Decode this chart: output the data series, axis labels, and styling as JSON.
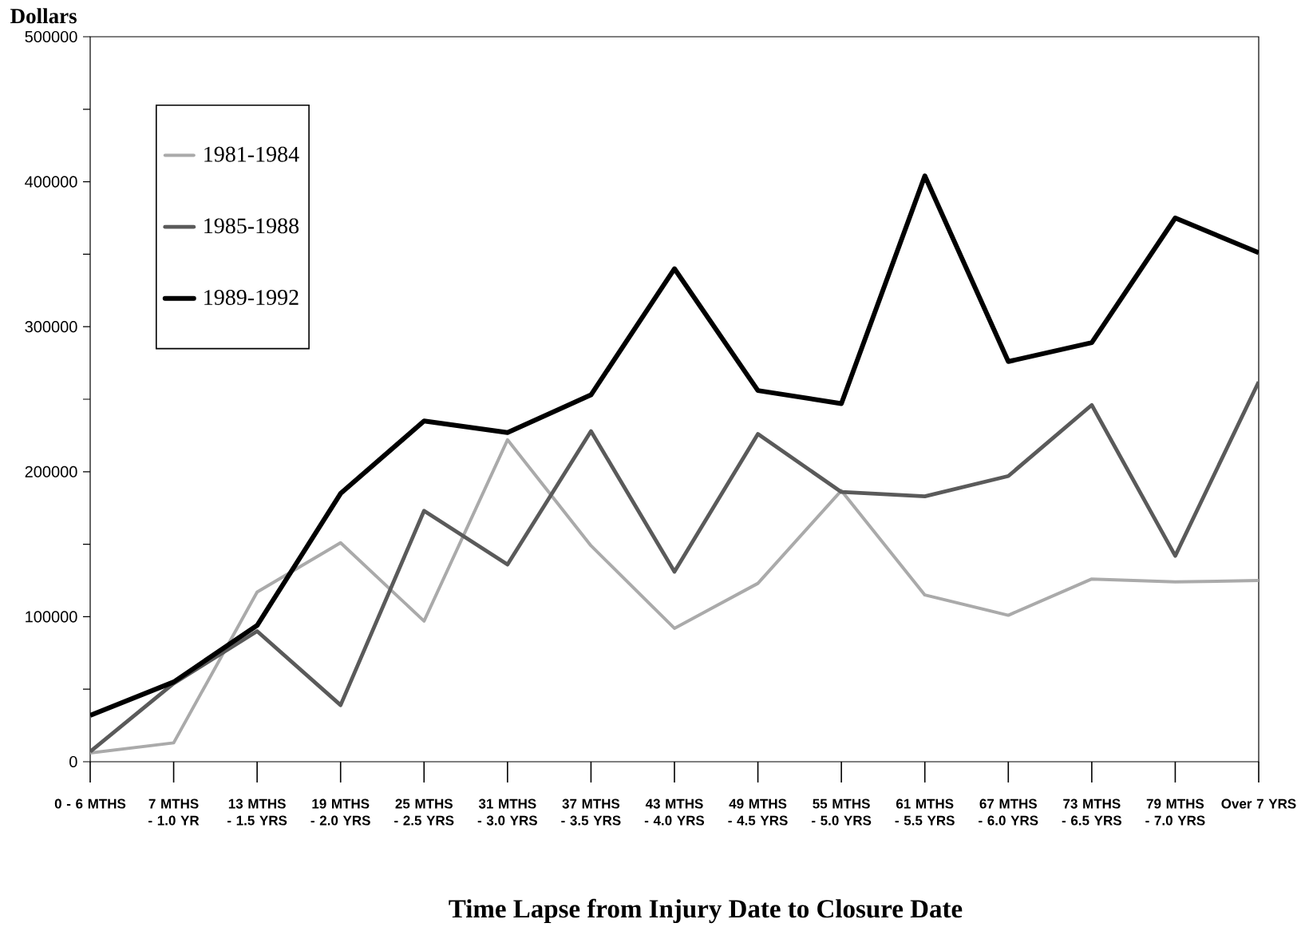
{
  "chart_data": {
    "type": "line",
    "xlabel": "Time Lapse from Injury Date to Closure Date",
    "ylabel": "Dollars",
    "categories": [
      "0 - 6 MTHS",
      "7 MTHS - 1.0 YR",
      "13 MTHS - 1.5 YRS",
      "19 MTHS - 2.0 YRS",
      "25 MTHS - 2.5 YRS",
      "31 MTHS - 3.0 YRS",
      "37 MTHS - 3.5 YRS",
      "43 MTHS - 4.0 YRS",
      "49 MTHS - 4.5 YRS",
      "55 MTHS - 5.0 YRS",
      "61 MTHS - 5.5 YRS",
      "67 MTHS - 6.0 YRS",
      "73 MTHS - 6.5 YRS",
      "79 MTHS - 7.0 YRS",
      "Over 7 YRS"
    ],
    "series": [
      {
        "name": "1981-1984",
        "color": "#aaaaaa",
        "values": [
          6000,
          13000,
          117000,
          151000,
          97000,
          222000,
          149000,
          92000,
          123000,
          187000,
          115000,
          101000,
          126000,
          124000,
          125000
        ]
      },
      {
        "name": "1985-1988",
        "color": "#5a5a5a",
        "values": [
          7000,
          54000,
          90000,
          39000,
          173000,
          136000,
          228000,
          131000,
          226000,
          186000,
          183000,
          197000,
          246000,
          142000,
          262000
        ]
      },
      {
        "name": "1989-1992",
        "color": "#000000",
        "values": [
          32000,
          55000,
          94000,
          185000,
          235000,
          227000,
          253000,
          340000,
          256000,
          247000,
          404000,
          276000,
          289000,
          375000,
          351000
        ]
      }
    ],
    "ylim": [
      0,
      500000
    ],
    "yticks": [
      0,
      {
        "value": 50000,
        "label": null
      },
      100000,
      {
        "value": 150000,
        "label": null
      },
      200000,
      {
        "value": 250000,
        "label": null
      },
      300000,
      {
        "value": 350000,
        "label": null
      },
      400000,
      {
        "value": 450000,
        "label": null
      },
      500000
    ],
    "legend": "top left"
  }
}
